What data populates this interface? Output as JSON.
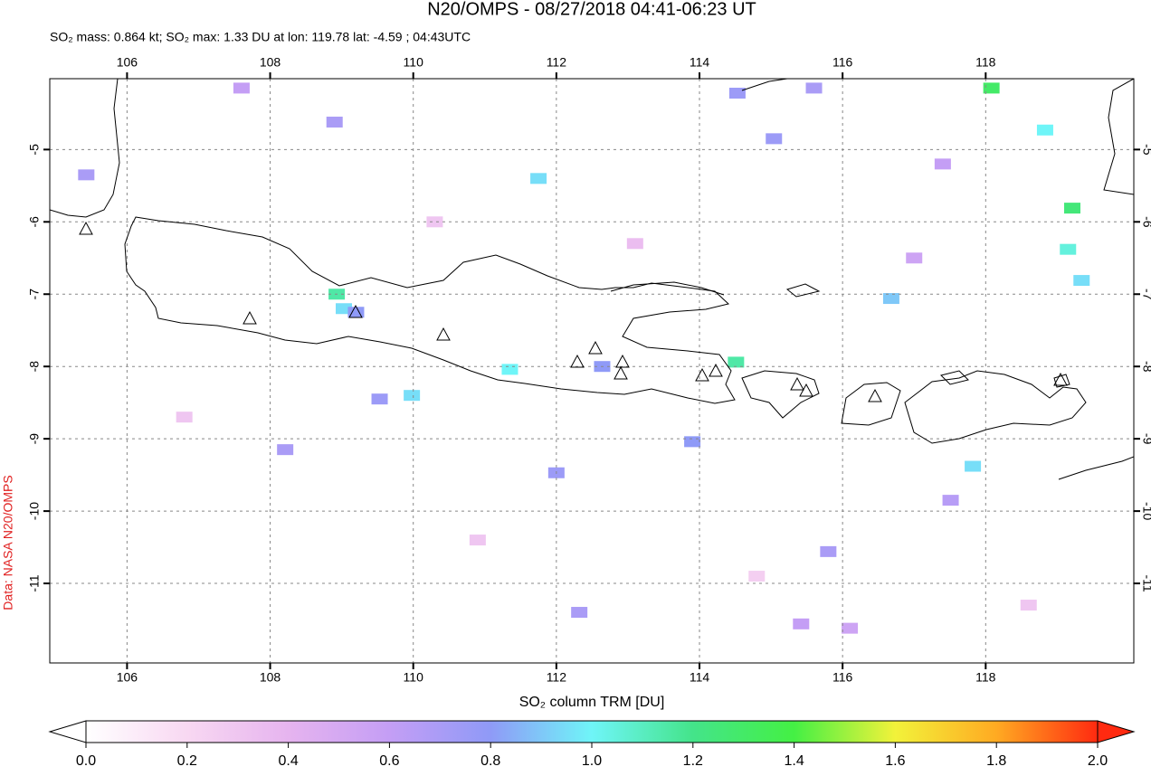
{
  "chart_data": {
    "type": "map",
    "title": "N20/OMPS - 08/27/2018 04:41-06:23 UT",
    "subtitle": "SO₂ mass: 0.864 kt; SO₂ max: 1.33 DU at lon: 119.78 lat: -4.59 ; 04:43UTC",
    "credit": "Data: NASA N20/OMPS",
    "xlim": [
      104.92,
      120.07
    ],
    "ylim": [
      -12.1,
      -4.02
    ],
    "xticks": [
      106,
      108,
      110,
      112,
      114,
      116,
      118
    ],
    "yticks": [
      -5,
      -6,
      -7,
      -8,
      -9,
      -10,
      -11
    ],
    "grid": true,
    "colorbar": {
      "label": "SO₂ column TRM [DU]",
      "lim": [
        0,
        2
      ],
      "ticks": [
        {
          "value": 0,
          "label": "0.0"
        },
        {
          "value": 0.2,
          "label": "0.2"
        },
        {
          "value": 0.4,
          "label": "0.4"
        },
        {
          "value": 0.6,
          "label": "0.6"
        },
        {
          "value": 0.8,
          "label": "0.8"
        },
        {
          "value": 1,
          "label": "1.0"
        },
        {
          "value": 1.2,
          "label": "1.2"
        },
        {
          "value": 1.4,
          "label": "1.4"
        },
        {
          "value": 1.6,
          "label": "1.6"
        },
        {
          "value": 1.8,
          "label": "1.8"
        },
        {
          "value": 2,
          "label": "2.0"
        }
      ],
      "colors": [
        "#ffffff",
        "#f8d8f2",
        "#e6b4ef",
        "#c49ef5",
        "#8f9af7",
        "#6ff5f8",
        "#44e48a",
        "#44f044",
        "#f2f23a",
        "#ffaa22",
        "#ff2a10"
      ]
    },
    "pixels": [
      {
        "lon": 118.08,
        "lat": -4.15,
        "value": 1.3
      },
      {
        "lon": 118.83,
        "lat": -4.73,
        "value": 1.0
      },
      {
        "lon": 119.21,
        "lat": -5.81,
        "value": 1.25
      },
      {
        "lon": 119.15,
        "lat": -6.38,
        "value": 1.05
      },
      {
        "lon": 119.34,
        "lat": -6.81,
        "value": 0.95
      },
      {
        "lon": 116.68,
        "lat": -7.06,
        "value": 0.9
      },
      {
        "lon": 117.82,
        "lat": -9.38,
        "value": 0.95
      },
      {
        "lon": 111.75,
        "lat": -5.4,
        "value": 0.95
      },
      {
        "lon": 108.93,
        "lat": -7.0,
        "value": 1.15
      },
      {
        "lon": 109.03,
        "lat": -7.2,
        "value": 0.95
      },
      {
        "lon": 109.2,
        "lat": -7.25,
        "value": 0.8
      },
      {
        "lon": 109.98,
        "lat": -8.4,
        "value": 0.95
      },
      {
        "lon": 114.51,
        "lat": -7.94,
        "value": 1.15
      },
      {
        "lon": 111.35,
        "lat": -8.04,
        "value": 1.0
      },
      {
        "lon": 112.64,
        "lat": -8.0,
        "value": 0.8
      },
      {
        "lon": 113.9,
        "lat": -9.04,
        "value": 0.8
      },
      {
        "lon": 112.0,
        "lat": -9.47,
        "value": 0.75
      },
      {
        "lon": 115.04,
        "lat": -4.85,
        "value": 0.75
      },
      {
        "lon": 115.6,
        "lat": -4.15,
        "value": 0.7
      },
      {
        "lon": 114.53,
        "lat": -4.22,
        "value": 0.75
      },
      {
        "lon": 117.51,
        "lat": -9.85,
        "value": 0.65
      },
      {
        "lon": 115.8,
        "lat": -10.56,
        "value": 0.7
      },
      {
        "lon": 115.42,
        "lat": -11.56,
        "value": 0.6
      },
      {
        "lon": 116.1,
        "lat": -11.62,
        "value": 0.55
      },
      {
        "lon": 112.32,
        "lat": -11.4,
        "value": 0.7
      },
      {
        "lon": 107.6,
        "lat": -4.15,
        "value": 0.6
      },
      {
        "lon": 108.9,
        "lat": -4.62,
        "value": 0.7
      },
      {
        "lon": 105.43,
        "lat": -5.35,
        "value": 0.7
      },
      {
        "lon": 108.21,
        "lat": -9.15,
        "value": 0.7
      },
      {
        "lon": 109.53,
        "lat": -8.45,
        "value": 0.75
      },
      {
        "lon": 117.4,
        "lat": -5.2,
        "value": 0.6
      },
      {
        "lon": 117.0,
        "lat": -6.5,
        "value": 0.55
      },
      {
        "lon": 110.3,
        "lat": -6.0,
        "value": 0.3
      },
      {
        "lon": 113.1,
        "lat": -6.3,
        "value": 0.35
      },
      {
        "lon": 106.8,
        "lat": -8.7,
        "value": 0.3
      },
      {
        "lon": 110.9,
        "lat": -10.4,
        "value": 0.3
      },
      {
        "lon": 114.8,
        "lat": -10.9,
        "value": 0.25
      },
      {
        "lon": 118.6,
        "lat": -11.3,
        "value": 0.3
      }
    ]
  }
}
